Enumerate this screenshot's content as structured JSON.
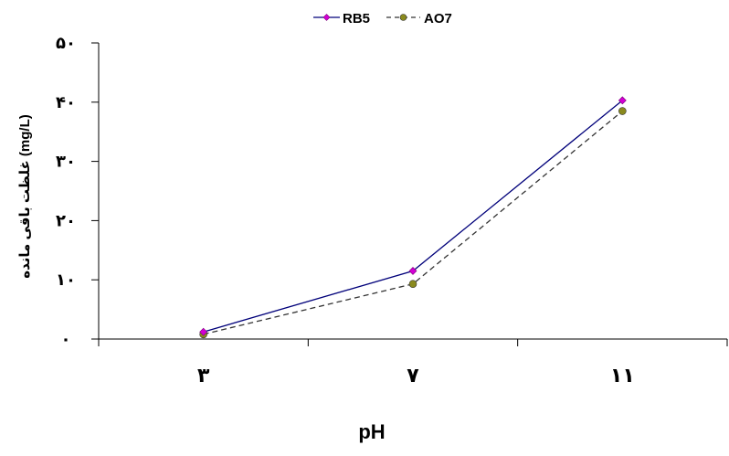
{
  "chart_data": {
    "type": "line",
    "categories": [
      "٣",
      "٧",
      "١١"
    ],
    "x": [
      3,
      7,
      11
    ],
    "xlabel": "pH",
    "ylabel": "غلظت باقی مانده (mg/L)",
    "ylim": [
      0,
      50
    ],
    "yticks": [
      0,
      10,
      20,
      30,
      40,
      50
    ],
    "ytick_labels": [
      "٠",
      "١٠",
      "٢٠",
      "٣٠",
      "۴٠",
      "۵٠"
    ],
    "grid": false,
    "legend_position": "top-center",
    "series": [
      {
        "name": "RB5",
        "values": [
          1.2,
          11.5,
          40.3
        ],
        "color": "#00007a",
        "marker_color": "#d400d4",
        "marker": "diamond",
        "dash": "solid"
      },
      {
        "name": "AO7",
        "values": [
          0.8,
          9.3,
          38.5
        ],
        "color": "#333333",
        "marker_color": "#8a8a1e",
        "marker": "circle",
        "dash": "dashed"
      }
    ]
  }
}
